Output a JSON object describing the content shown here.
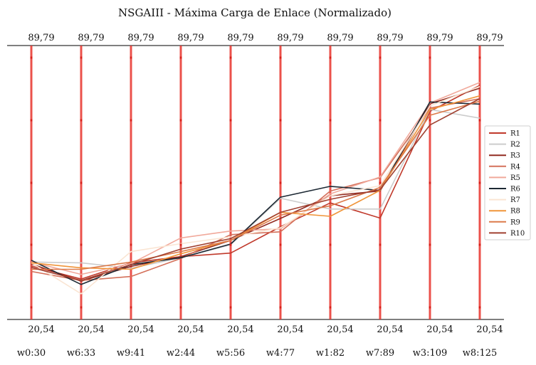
{
  "chart_data": {
    "type": "parallel-coordinates",
    "title": "NSGAIII - Máxima Carga de Enlace (Normalizado)",
    "axes": [
      "w0:30",
      "w6:33",
      "w9:41",
      "w2:44",
      "w5:56",
      "w4:77",
      "w1:82",
      "w7:89",
      "w3:109",
      "w8:125"
    ],
    "axis_top_labels": [
      "89,79",
      "89,79",
      "89,79",
      "89,79",
      "89,79",
      "89,79",
      "89,79",
      "89,79",
      "89,79",
      "89,79"
    ],
    "axis_bottom_labels": [
      "20,54",
      "20,54",
      "20,54",
      "20,54",
      "20,54",
      "20,54",
      "20,54",
      "20,54",
      "20,54",
      "20,54"
    ],
    "ylim": [
      20.54,
      89.79
    ],
    "legend_position": "right",
    "series": [
      {
        "name": "R1",
        "color": "#c0392b",
        "values": [
          32.0,
          28.4,
          32.9,
          34.6,
          35.6,
          42.9,
          49.5,
          45.3,
          74.9,
          82.1
        ]
      },
      {
        "name": "R2",
        "color": "#cccccc",
        "values": [
          33.1,
          32.9,
          31.4,
          34.3,
          37.9,
          50.8,
          47.8,
          47.8,
          75.4,
          73.0
        ]
      },
      {
        "name": "R3",
        "color": "#922b21",
        "values": [
          32.6,
          27.8,
          31.9,
          34.6,
          39.1,
          45.2,
          51.5,
          52.8,
          77.0,
          81.3
        ]
      },
      {
        "name": "R4",
        "color": "#d4705a",
        "values": [
          30.5,
          28.0,
          29.1,
          34.1,
          40.7,
          41.5,
          52.8,
          56.5,
          75.8,
          78.4
        ]
      },
      {
        "name": "R5",
        "color": "#f1a99b",
        "values": [
          33.1,
          29.7,
          32.7,
          39.8,
          41.7,
          42.3,
          52.0,
          56.7,
          77.2,
          82.9
        ]
      },
      {
        "name": "R6",
        "color": "#1c2833",
        "values": [
          33.6,
          26.9,
          32.4,
          34.3,
          38.1,
          51.1,
          54.1,
          53.0,
          77.5,
          76.9
        ]
      },
      {
        "name": "R7",
        "color": "#fae5d3",
        "values": [
          32.9,
          24.3,
          36.0,
          38.2,
          40.1,
          42.6,
          51.5,
          54.3,
          76.4,
          81.8
        ]
      },
      {
        "name": "R8",
        "color": "#f0953a",
        "values": [
          32.9,
          31.5,
          31.1,
          35.4,
          39.1,
          46.9,
          45.8,
          53.0,
          75.4,
          79.2
        ]
      },
      {
        "name": "R9",
        "color": "#dc7a4a",
        "values": [
          31.1,
          31.1,
          33.1,
          36.0,
          39.1,
          46.1,
          48.7,
          53.8,
          73.8,
          77.7
        ]
      },
      {
        "name": "R10",
        "color": "#a04030",
        "values": [
          31.6,
          28.0,
          32.4,
          36.7,
          39.6,
          46.9,
          50.5,
          53.2,
          71.1,
          78.4
        ]
      }
    ]
  }
}
